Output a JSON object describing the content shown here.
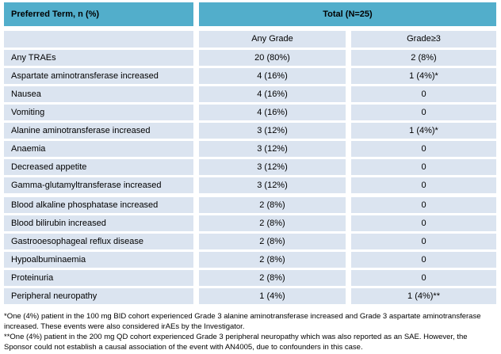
{
  "table": {
    "header": {
      "preferred_term": "Preferred Term, n (%)",
      "total": "Total (N=25)"
    },
    "subheader": {
      "spacer": "",
      "any_grade": "Any Grade",
      "grade_ge3": "Grade≥3"
    },
    "rows": [
      {
        "term": "Any TRAEs",
        "any_grade": "20 (80%)",
        "grade_ge3": "2 (8%)"
      },
      {
        "term": "Aspartate aminotransferase increased",
        "any_grade": "4 (16%)",
        "grade_ge3": "1 (4%)*"
      },
      {
        "term": "Nausea",
        "any_grade": "4 (16%)",
        "grade_ge3": "0"
      },
      {
        "term": "Vomiting",
        "any_grade": "4 (16%)",
        "grade_ge3": "0"
      },
      {
        "term": "Alanine aminotransferase increased",
        "any_grade": "3 (12%)",
        "grade_ge3": "1 (4%)*"
      },
      {
        "term": "Anaemia",
        "any_grade": "3 (12%)",
        "grade_ge3": "0"
      },
      {
        "term": "Decreased appetite",
        "any_grade": "3 (12%)",
        "grade_ge3": "0"
      },
      {
        "term": "Gamma-glutamyltransferase increased",
        "any_grade": "3 (12%)",
        "grade_ge3": "0"
      },
      {
        "term": "Blood alkaline phosphatase increased",
        "any_grade": "2 (8%)",
        "grade_ge3": "0",
        "group_start": true
      },
      {
        "term": "Blood bilirubin increased",
        "any_grade": "2 (8%)",
        "grade_ge3": "0"
      },
      {
        "term": "Gastrooesophageal reflux disease",
        "any_grade": "2 (8%)",
        "grade_ge3": "0"
      },
      {
        "term": "Hypoalbuminaemia",
        "any_grade": "2 (8%)",
        "grade_ge3": "0"
      },
      {
        "term": "Proteinuria",
        "any_grade": "2 (8%)",
        "grade_ge3": "0"
      },
      {
        "term": "Peripheral neuropathy",
        "any_grade": "1 (4%)",
        "grade_ge3": "1 (4%)**"
      }
    ]
  },
  "footnotes": [
    "*One (4%) patient in the 100 mg BID cohort experienced Grade 3 alanine aminotransferase increased and Grade 3 aspartate aminotransferase increased. These events were also considered irAEs by the Investigator.",
    "**One (4%) patient in the 200 mg QD cohort experienced Grade 3 peripheral neuropathy which was also reported as an SAE. However, the Sponsor could not establish a causal association of the event with AN4005, due to confounders in this case."
  ],
  "colors": {
    "header_fill": "#52AECB",
    "row_fill": "#DBE4F0",
    "text": "#000000",
    "background": "#FFFFFF"
  }
}
